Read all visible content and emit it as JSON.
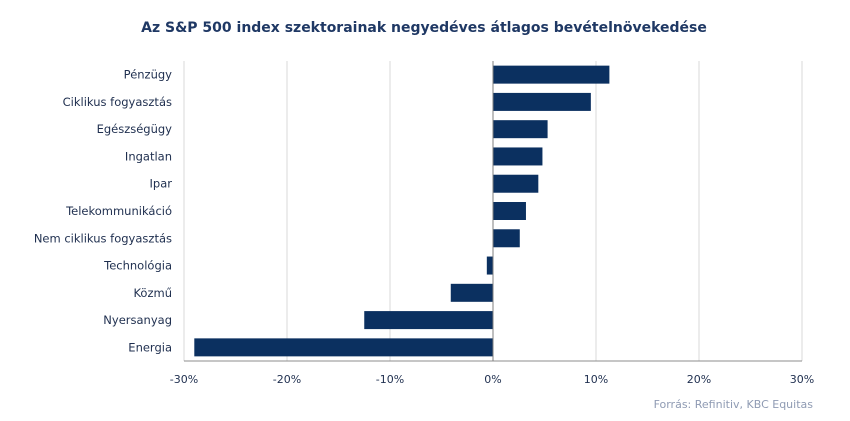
{
  "chart_data": {
    "type": "bar",
    "orientation": "horizontal",
    "title": "Az S&P 500 index szektorainak negyedéves átlagos bevételnövekedése",
    "categories": [
      "Pénzügy",
      "Ciklikus fogyasztás",
      "Egészségügy",
      "Ingatlan",
      "Ipar",
      "Telekommunikáció",
      "Nem ciklikus fogyasztás",
      "Technológia",
      "Közmű",
      "Nyersanyag",
      "Energia"
    ],
    "values": [
      11.3,
      9.5,
      5.3,
      4.8,
      4.4,
      3.2,
      2.6,
      -0.6,
      -4.1,
      -12.5,
      -29.0
    ],
    "xlim": [
      -30,
      30
    ],
    "xticks": [
      -30,
      -20,
      -10,
      0,
      10,
      20,
      30
    ],
    "tick_labels": [
      "-30%",
      "-20%",
      "-10%",
      "0%",
      "10%",
      "20%",
      "30%"
    ],
    "unit": "%",
    "grid": "vertical",
    "bar_color": "#0b3060",
    "source": "Forrás: Refinitiv, KBC Equitas"
  }
}
